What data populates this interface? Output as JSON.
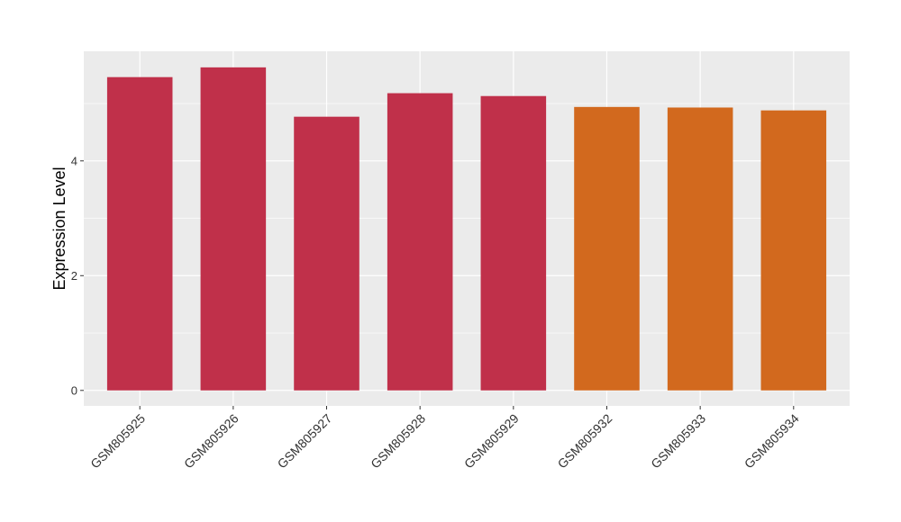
{
  "chart_data": {
    "type": "bar",
    "y_label": "Expression Level",
    "categories": [
      "GSM805925",
      "GSM805926",
      "GSM805927",
      "GSM805928",
      "GSM805929",
      "GSM805932",
      "GSM805933",
      "GSM805934"
    ],
    "values": [
      5.46,
      5.63,
      4.77,
      5.18,
      5.13,
      4.94,
      4.93,
      4.88
    ],
    "colors": [
      "#c0304a",
      "#c0304a",
      "#c0304a",
      "#c0304a",
      "#c0304a",
      "#d2691e",
      "#d2691e",
      "#d2691e"
    ],
    "ylim": [
      -0.27,
      5.91
    ],
    "yticks": [
      0,
      2,
      4
    ],
    "minor_yticks": [
      1,
      3,
      5
    ],
    "grid": true
  }
}
